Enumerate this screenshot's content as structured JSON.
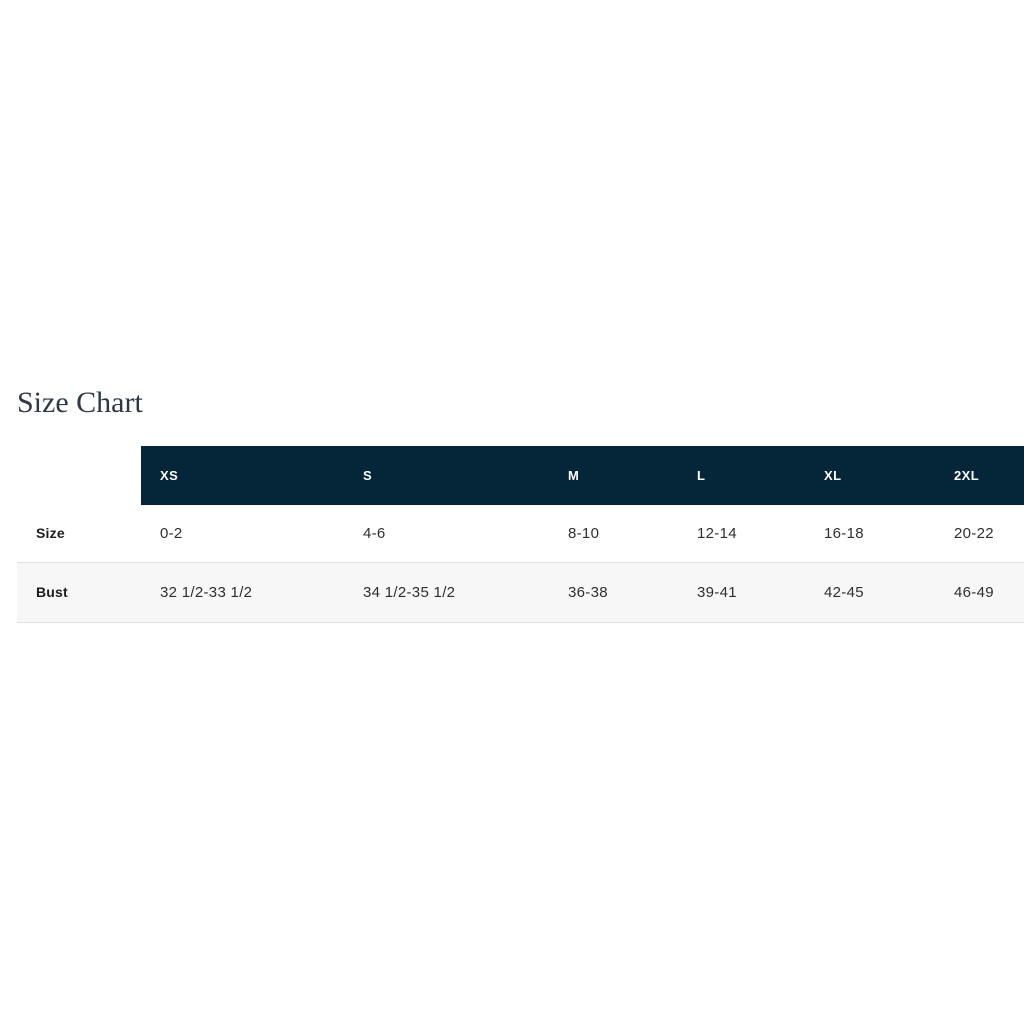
{
  "page": {
    "title": "Size Chart"
  },
  "size_chart": {
    "headers": [
      "XS",
      "S",
      "M",
      "L",
      "XL",
      "2XL"
    ],
    "rows": [
      {
        "label": "Size",
        "values": [
          "0-2",
          "4-6",
          "8-10",
          "12-14",
          "16-18",
          "20-22"
        ]
      },
      {
        "label": "Bust",
        "values": [
          "32 1/2-33 1/2",
          "34 1/2-35 1/2",
          "36-38",
          "39-41",
          "42-45",
          "46-49"
        ]
      }
    ]
  },
  "colors": {
    "header_background": "#052539",
    "header_text": "#ffffff",
    "alt_row_background": "#f7f7f7",
    "row_border": "#e0e0e0",
    "title_text": "#2c3947",
    "body_text": "#2e2e2e",
    "page_background": "#ffffff"
  }
}
